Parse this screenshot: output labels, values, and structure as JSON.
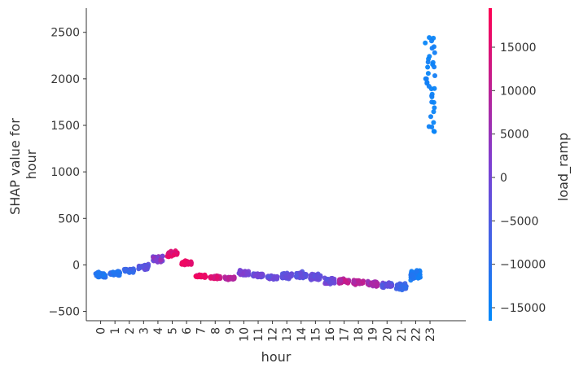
{
  "chart_data": {
    "type": "scatter",
    "subtype": "shap-dependence",
    "xlabel": "hour",
    "ylabel_lines": [
      "SHAP value for",
      "hour"
    ],
    "xlim": [
      -1,
      25.5
    ],
    "ylim": [
      -600,
      2760
    ],
    "x_ticks": [
      "0",
      "1",
      "2",
      "3",
      "4",
      "5",
      "6",
      "7",
      "8",
      "9",
      "10",
      "11",
      "12",
      "13",
      "14",
      "15",
      "16",
      "17",
      "18",
      "19",
      "20",
      "21",
      "22",
      "23"
    ],
    "y_ticks": [
      -500,
      0,
      500,
      1000,
      1500,
      2000,
      2500
    ],
    "y_tick_labels": [
      "−500",
      "0",
      "500",
      "1000",
      "1500",
      "2000",
      "2500"
    ],
    "colorbar": {
      "label": "load_ramp",
      "range": [
        -16500,
        19500
      ],
      "ticks": [
        15000,
        10000,
        5000,
        0,
        -5000,
        -10000,
        -15000
      ],
      "tick_labels": [
        "15000",
        "10000",
        "5000",
        "0",
        "−5000",
        "−10000",
        "−15000"
      ],
      "color_low": "#008afb",
      "color_mid": "#7d3fd2",
      "color_high": "#ff0052"
    },
    "hour_groups": [
      {
        "hour": 0,
        "mean": -110,
        "spread": 45,
        "ramp_min": -13000,
        "ramp_max": -10000
      },
      {
        "hour": 1,
        "mean": -90,
        "spread": 40,
        "ramp_min": -12500,
        "ramp_max": -9000
      },
      {
        "hour": 2,
        "mean": -60,
        "spread": 35,
        "ramp_min": -10000,
        "ramp_max": -6000
      },
      {
        "hour": 3,
        "mean": -20,
        "spread": 45,
        "ramp_min": -6000,
        "ramp_max": -1000
      },
      {
        "hour": 4,
        "mean": 60,
        "spread": 60,
        "ramp_min": -2000,
        "ramp_max": 6000
      },
      {
        "hour": 5,
        "mean": 120,
        "spread": 45,
        "ramp_min": 13000,
        "ramp_max": 17000
      },
      {
        "hour": 6,
        "mean": 20,
        "spread": 40,
        "ramp_min": 14000,
        "ramp_max": 18000
      },
      {
        "hour": 7,
        "mean": -120,
        "spread": 25,
        "ramp_min": 14000,
        "ramp_max": 18000
      },
      {
        "hour": 8,
        "mean": -135,
        "spread": 25,
        "ramp_min": 12000,
        "ramp_max": 16000
      },
      {
        "hour": 9,
        "mean": -145,
        "spread": 25,
        "ramp_min": 7000,
        "ramp_max": 11000
      },
      {
        "hour": 10,
        "mean": -90,
        "spread": 50,
        "ramp_min": -1000,
        "ramp_max": 3000
      },
      {
        "hour": 11,
        "mean": -110,
        "spread": 40,
        "ramp_min": -3000,
        "ramp_max": 1000
      },
      {
        "hour": 12,
        "mean": -135,
        "spread": 30,
        "ramp_min": -4000,
        "ramp_max": 0
      },
      {
        "hour": 13,
        "mean": -120,
        "spread": 45,
        "ramp_min": -5000,
        "ramp_max": -1000
      },
      {
        "hour": 14,
        "mean": -110,
        "spread": 45,
        "ramp_min": -5000,
        "ramp_max": -1000
      },
      {
        "hour": 15,
        "mean": -130,
        "spread": 50,
        "ramp_min": -4000,
        "ramp_max": 0
      },
      {
        "hour": 16,
        "mean": -170,
        "spread": 60,
        "ramp_min": -5000,
        "ramp_max": 3000
      },
      {
        "hour": 17,
        "mean": -175,
        "spread": 40,
        "ramp_min": 6000,
        "ramp_max": 12000
      },
      {
        "hour": 18,
        "mean": -190,
        "spread": 40,
        "ramp_min": 7000,
        "ramp_max": 12000
      },
      {
        "hour": 19,
        "mean": -200,
        "spread": 45,
        "ramp_min": 3000,
        "ramp_max": 9000
      },
      {
        "hour": 20,
        "mean": -215,
        "spread": 45,
        "ramp_min": -6000,
        "ramp_max": 0
      },
      {
        "hour": 21,
        "mean": -230,
        "spread": 55,
        "ramp_min": -10000,
        "ramp_max": -6000
      },
      {
        "hour": 22,
        "mean": -110,
        "spread": 80,
        "ramp_min": -14000,
        "ramp_max": -11000
      },
      {
        "hour": 23,
        "mean": 1950,
        "spread": 400,
        "ramp_min": -15500,
        "ramp_max": -13500
      }
    ]
  }
}
